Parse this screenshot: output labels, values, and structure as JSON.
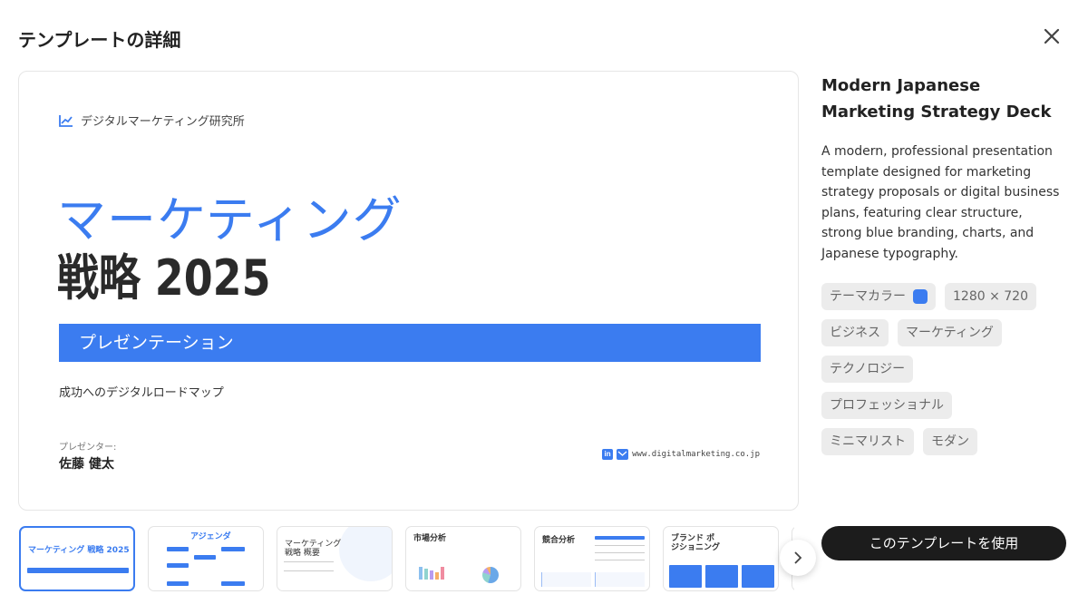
{
  "dialog": {
    "title": "テンプレートの詳細",
    "close_icon": "close-icon"
  },
  "slide": {
    "org": "デジタルマーケティング研究所",
    "title_line1": "マーケティング",
    "title_line2": "戦略 2025",
    "banner": "プレゼンテーション",
    "subtitle": "成功へのデジタルロードマップ",
    "presenter_label": "プレゼンター:",
    "presenter_name": "佐藤 健太",
    "website": "www.digitalmarketing.co.jp",
    "accent": "#3b7cf0"
  },
  "details": {
    "name": "Modern Japanese Marketing Strategy Deck",
    "description": "A modern, professional presentation template designed for marketing strategy proposals or digital business plans, featuring clear structure, strong blue branding, charts, and Japanese typography.",
    "theme_color_label": "テーマカラー",
    "theme_color": "#3b7cf0",
    "size": "1280 × 720",
    "tags": [
      "ビジネス",
      "マーケティング",
      "テクノロジー",
      "プロフェッショナル",
      "ミニマリスト",
      "モダン"
    ],
    "use_button": "このテンプレートを使用"
  },
  "thumbnails": [
    {
      "title": "マーケティング 戦略 2025"
    },
    {
      "title": "アジェンダ"
    },
    {
      "title": "マーケティング戦略 概要"
    },
    {
      "title": "市場分析"
    },
    {
      "title": "競合分析"
    },
    {
      "title": "ブランド ポジショニング"
    }
  ]
}
